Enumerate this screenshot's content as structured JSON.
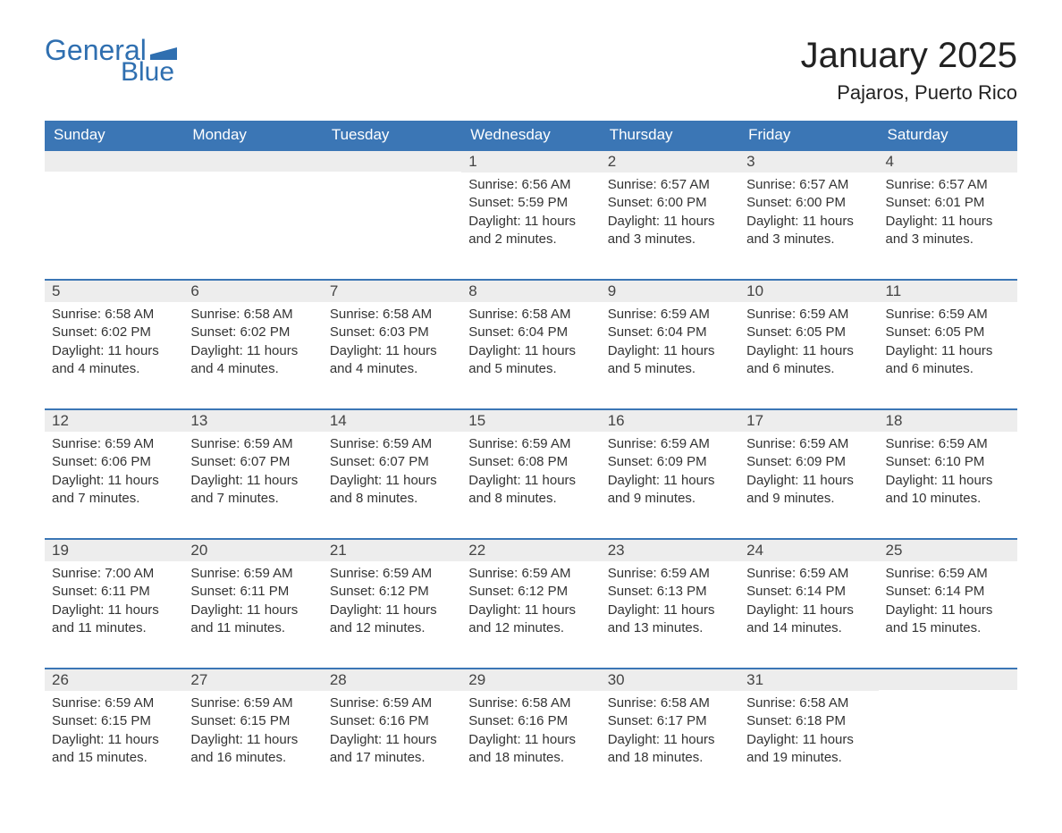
{
  "logo": {
    "general": "General",
    "blue": "Blue",
    "color": "#2f6fb0"
  },
  "title": "January 2025",
  "location": "Pajaros, Puerto Rico",
  "colors": {
    "header_bg": "#3b76b5",
    "header_text": "#ffffff",
    "daynum_bg": "#ededed",
    "cell_border": "#3b76b5",
    "text": "#333333"
  },
  "weekdays": [
    "Sunday",
    "Monday",
    "Tuesday",
    "Wednesday",
    "Thursday",
    "Friday",
    "Saturday"
  ],
  "weeks": [
    [
      null,
      null,
      null,
      {
        "n": "1",
        "sr": "Sunrise: 6:56 AM",
        "ss": "Sunset: 5:59 PM",
        "dl": "Daylight: 11 hours and 2 minutes."
      },
      {
        "n": "2",
        "sr": "Sunrise: 6:57 AM",
        "ss": "Sunset: 6:00 PM",
        "dl": "Daylight: 11 hours and 3 minutes."
      },
      {
        "n": "3",
        "sr": "Sunrise: 6:57 AM",
        "ss": "Sunset: 6:00 PM",
        "dl": "Daylight: 11 hours and 3 minutes."
      },
      {
        "n": "4",
        "sr": "Sunrise: 6:57 AM",
        "ss": "Sunset: 6:01 PM",
        "dl": "Daylight: 11 hours and 3 minutes."
      }
    ],
    [
      {
        "n": "5",
        "sr": "Sunrise: 6:58 AM",
        "ss": "Sunset: 6:02 PM",
        "dl": "Daylight: 11 hours and 4 minutes."
      },
      {
        "n": "6",
        "sr": "Sunrise: 6:58 AM",
        "ss": "Sunset: 6:02 PM",
        "dl": "Daylight: 11 hours and 4 minutes."
      },
      {
        "n": "7",
        "sr": "Sunrise: 6:58 AM",
        "ss": "Sunset: 6:03 PM",
        "dl": "Daylight: 11 hours and 4 minutes."
      },
      {
        "n": "8",
        "sr": "Sunrise: 6:58 AM",
        "ss": "Sunset: 6:04 PM",
        "dl": "Daylight: 11 hours and 5 minutes."
      },
      {
        "n": "9",
        "sr": "Sunrise: 6:59 AM",
        "ss": "Sunset: 6:04 PM",
        "dl": "Daylight: 11 hours and 5 minutes."
      },
      {
        "n": "10",
        "sr": "Sunrise: 6:59 AM",
        "ss": "Sunset: 6:05 PM",
        "dl": "Daylight: 11 hours and 6 minutes."
      },
      {
        "n": "11",
        "sr": "Sunrise: 6:59 AM",
        "ss": "Sunset: 6:05 PM",
        "dl": "Daylight: 11 hours and 6 minutes."
      }
    ],
    [
      {
        "n": "12",
        "sr": "Sunrise: 6:59 AM",
        "ss": "Sunset: 6:06 PM",
        "dl": "Daylight: 11 hours and 7 minutes."
      },
      {
        "n": "13",
        "sr": "Sunrise: 6:59 AM",
        "ss": "Sunset: 6:07 PM",
        "dl": "Daylight: 11 hours and 7 minutes."
      },
      {
        "n": "14",
        "sr": "Sunrise: 6:59 AM",
        "ss": "Sunset: 6:07 PM",
        "dl": "Daylight: 11 hours and 8 minutes."
      },
      {
        "n": "15",
        "sr": "Sunrise: 6:59 AM",
        "ss": "Sunset: 6:08 PM",
        "dl": "Daylight: 11 hours and 8 minutes."
      },
      {
        "n": "16",
        "sr": "Sunrise: 6:59 AM",
        "ss": "Sunset: 6:09 PM",
        "dl": "Daylight: 11 hours and 9 minutes."
      },
      {
        "n": "17",
        "sr": "Sunrise: 6:59 AM",
        "ss": "Sunset: 6:09 PM",
        "dl": "Daylight: 11 hours and 9 minutes."
      },
      {
        "n": "18",
        "sr": "Sunrise: 6:59 AM",
        "ss": "Sunset: 6:10 PM",
        "dl": "Daylight: 11 hours and 10 minutes."
      }
    ],
    [
      {
        "n": "19",
        "sr": "Sunrise: 7:00 AM",
        "ss": "Sunset: 6:11 PM",
        "dl": "Daylight: 11 hours and 11 minutes."
      },
      {
        "n": "20",
        "sr": "Sunrise: 6:59 AM",
        "ss": "Sunset: 6:11 PM",
        "dl": "Daylight: 11 hours and 11 minutes."
      },
      {
        "n": "21",
        "sr": "Sunrise: 6:59 AM",
        "ss": "Sunset: 6:12 PM",
        "dl": "Daylight: 11 hours and 12 minutes."
      },
      {
        "n": "22",
        "sr": "Sunrise: 6:59 AM",
        "ss": "Sunset: 6:12 PM",
        "dl": "Daylight: 11 hours and 12 minutes."
      },
      {
        "n": "23",
        "sr": "Sunrise: 6:59 AM",
        "ss": "Sunset: 6:13 PM",
        "dl": "Daylight: 11 hours and 13 minutes."
      },
      {
        "n": "24",
        "sr": "Sunrise: 6:59 AM",
        "ss": "Sunset: 6:14 PM",
        "dl": "Daylight: 11 hours and 14 minutes."
      },
      {
        "n": "25",
        "sr": "Sunrise: 6:59 AM",
        "ss": "Sunset: 6:14 PM",
        "dl": "Daylight: 11 hours and 15 minutes."
      }
    ],
    [
      {
        "n": "26",
        "sr": "Sunrise: 6:59 AM",
        "ss": "Sunset: 6:15 PM",
        "dl": "Daylight: 11 hours and 15 minutes."
      },
      {
        "n": "27",
        "sr": "Sunrise: 6:59 AM",
        "ss": "Sunset: 6:15 PM",
        "dl": "Daylight: 11 hours and 16 minutes."
      },
      {
        "n": "28",
        "sr": "Sunrise: 6:59 AM",
        "ss": "Sunset: 6:16 PM",
        "dl": "Daylight: 11 hours and 17 minutes."
      },
      {
        "n": "29",
        "sr": "Sunrise: 6:58 AM",
        "ss": "Sunset: 6:16 PM",
        "dl": "Daylight: 11 hours and 18 minutes."
      },
      {
        "n": "30",
        "sr": "Sunrise: 6:58 AM",
        "ss": "Sunset: 6:17 PM",
        "dl": "Daylight: 11 hours and 18 minutes."
      },
      {
        "n": "31",
        "sr": "Sunrise: 6:58 AM",
        "ss": "Sunset: 6:18 PM",
        "dl": "Daylight: 11 hours and 19 minutes."
      },
      null
    ]
  ]
}
